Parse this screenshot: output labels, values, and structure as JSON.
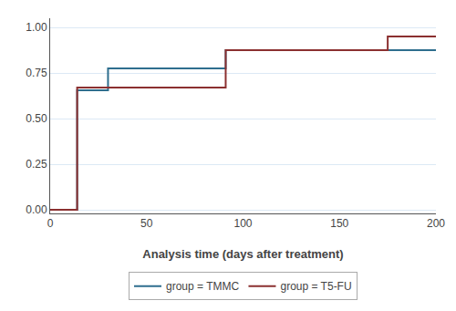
{
  "chart_data": {
    "type": "line",
    "xlabel": "Analysis time (days after treatment)",
    "series": [
      {
        "name": "group = TMMC",
        "color": "#2E6E8E",
        "x": [
          0,
          14,
          14,
          30,
          30,
          91,
          91,
          180,
          180,
          200
        ],
        "values": [
          0.0,
          0.0,
          0.655,
          0.655,
          0.775,
          0.775,
          0.875,
          0.875,
          0.875,
          0.875
        ]
      },
      {
        "name": "group = T5-FU",
        "color": "#8B3030",
        "x": [
          0,
          14,
          14,
          91,
          91,
          175,
          175,
          200
        ],
        "values": [
          0.0,
          0.0,
          0.67,
          0.67,
          0.875,
          0.875,
          0.95,
          0.95
        ]
      }
    ],
    "xlim": [
      0,
      200
    ],
    "xticks": [
      0,
      50,
      100,
      150,
      200
    ],
    "ylim": [
      -0.02,
      1.05
    ],
    "yticks": [
      {
        "value": 0,
        "label": "0.00"
      },
      {
        "value": 0.25,
        "label": "0.25"
      },
      {
        "value": 0.5,
        "label": "0.50"
      },
      {
        "value": 0.75,
        "label": "0.75"
      },
      {
        "value": 1,
        "label": "1.00"
      }
    ],
    "grid": "y",
    "legend": "bottom"
  }
}
